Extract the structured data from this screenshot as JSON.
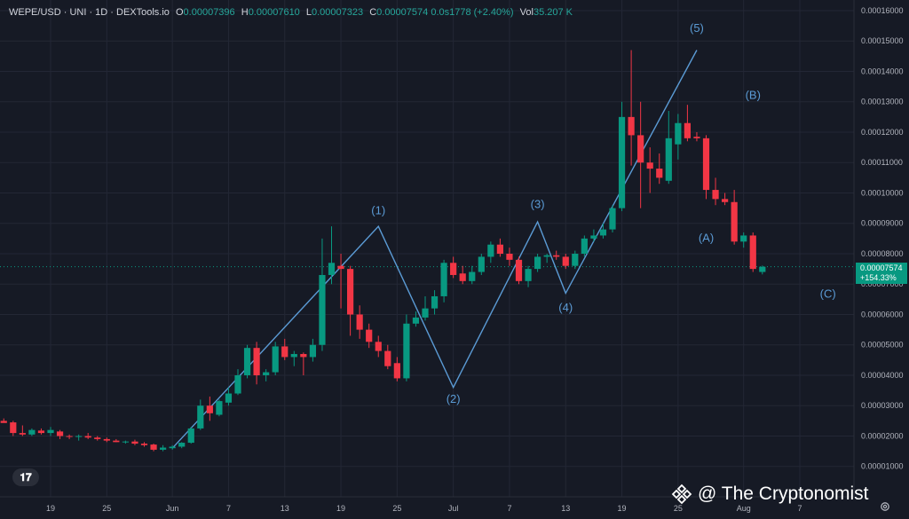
{
  "header": {
    "symbol": "WEPE/USD · UNI · 1D · DEXTools.io",
    "o_label": "O",
    "o_value": "0.00007396",
    "h_label": "H",
    "h_value": "0.00007610",
    "l_label": "L",
    "l_value": "0.00007323",
    "c_label": "C",
    "c_value": "0.00007574",
    "change": "0.0s1778 (+2.40%)",
    "vol_label": "Vol",
    "vol_value": "35.207 K"
  },
  "price_badge": {
    "price": "0.00007574",
    "pct": "+154.33%"
  },
  "watermark": {
    "text": "@ The Cryptonomist",
    "icon": "binance-diamond-icon"
  },
  "colors": {
    "up": "#089981",
    "down": "#f23645",
    "wave": "#5b9bd5",
    "bg": "#161a25",
    "grid": "#232735"
  },
  "chart_data": {
    "type": "candlestick",
    "title": "WEPE/USD · UNI · 1D · DEXTools.io",
    "y_ticks": [
      "0.00016000",
      "0.00015000",
      "0.00014000",
      "0.00013000",
      "0.00012000",
      "0.00011000",
      "0.00010000",
      "0.00009000",
      "0.00008000",
      "0.00007000",
      "0.00006000",
      "0.00005000",
      "0.00004000",
      "0.00003000",
      "0.00002000",
      "0.00001000"
    ],
    "y_tick_values": [
      0.00016,
      0.00015,
      0.00014,
      0.00013,
      0.00012,
      0.00011,
      0.0001,
      9e-05,
      8e-05,
      7e-05,
      6e-05,
      5e-05,
      4e-05,
      3e-05,
      2e-05,
      1e-05
    ],
    "x_ticks": [
      {
        "label": "19",
        "day": 0
      },
      {
        "label": "25",
        "day": 6
      },
      {
        "label": "Jun",
        "day": 13
      },
      {
        "label": "7",
        "day": 19
      },
      {
        "label": "13",
        "day": 25
      },
      {
        "label": "19",
        "day": 31
      },
      {
        "label": "25",
        "day": 37
      },
      {
        "label": "Jul",
        "day": 43
      },
      {
        "label": "7",
        "day": 49
      },
      {
        "label": "13",
        "day": 55
      },
      {
        "label": "19",
        "day": 61
      },
      {
        "label": "25",
        "day": 67
      },
      {
        "label": "Aug",
        "day": 74
      },
      {
        "label": "7",
        "day": 80
      }
    ],
    "ylim": [
      0.0,
      0.0001635
    ],
    "candles": [
      {
        "o": 2.6e-05,
        "h": 2.95e-05,
        "l": 2.45e-05,
        "c": 2.5e-05
      },
      {
        "o": 2.5e-05,
        "h": 2.58e-05,
        "l": 2.45e-05,
        "c": 2.43e-05
      },
      {
        "o": 2.45e-05,
        "h": 2.5e-05,
        "l": 2e-05,
        "c": 2.1e-05
      },
      {
        "o": 2.1e-05,
        "h": 2.35e-05,
        "l": 2e-05,
        "c": 2.05e-05
      },
      {
        "o": 2.05e-05,
        "h": 2.25e-05,
        "l": 2e-05,
        "c": 2.2e-05
      },
      {
        "o": 2.18e-05,
        "h": 2.25e-05,
        "l": 2.05e-05,
        "c": 2.1e-05
      },
      {
        "o": 2.1e-05,
        "h": 2.3e-05,
        "l": 2e-05,
        "c": 2.2e-05
      },
      {
        "o": 2.15e-05,
        "h": 2.2e-05,
        "l": 1.9e-05,
        "c": 2e-05
      },
      {
        "o": 2e-05,
        "h": 2.05e-05,
        "l": 1.9e-05,
        "c": 1.98e-05
      },
      {
        "o": 1.98e-05,
        "h": 2.05e-05,
        "l": 1.85e-05,
        "c": 2e-05
      },
      {
        "o": 2e-05,
        "h": 2.1e-05,
        "l": 1.9e-05,
        "c": 1.95e-05
      },
      {
        "o": 1.95e-05,
        "h": 2e-05,
        "l": 1.85e-05,
        "c": 1.9e-05
      },
      {
        "o": 1.9e-05,
        "h": 1.95e-05,
        "l": 1.8e-05,
        "c": 1.85e-05
      },
      {
        "o": 1.85e-05,
        "h": 1.9e-05,
        "l": 1.8e-05,
        "c": 1.8e-05
      },
      {
        "o": 1.8e-05,
        "h": 1.85e-05,
        "l": 1.75e-05,
        "c": 1.82e-05
      },
      {
        "o": 1.82e-05,
        "h": 1.88e-05,
        "l": 1.7e-05,
        "c": 1.75e-05
      },
      {
        "o": 1.75e-05,
        "h": 1.8e-05,
        "l": 1.65e-05,
        "c": 1.7e-05
      },
      {
        "o": 1.72e-05,
        "h": 1.75e-05,
        "l": 1.5e-05,
        "c": 1.55e-05
      },
      {
        "o": 1.55e-05,
        "h": 1.7e-05,
        "l": 1.5e-05,
        "c": 1.62e-05
      },
      {
        "o": 1.6e-05,
        "h": 1.7e-05,
        "l": 1.55e-05,
        "c": 1.65e-05
      },
      {
        "o": 1.65e-05,
        "h": 1.8e-05,
        "l": 1.6e-05,
        "c": 1.78e-05
      },
      {
        "o": 1.78e-05,
        "h": 2.3e-05,
        "l": 1.75e-05,
        "c": 2.25e-05
      },
      {
        "o": 2.25e-05,
        "h": 3.2e-05,
        "l": 2.2e-05,
        "c": 3e-05
      },
      {
        "o": 3e-05,
        "h": 3.3e-05,
        "l": 2.5e-05,
        "c": 2.75e-05
      },
      {
        "o": 2.7e-05,
        "h": 3.2e-05,
        "l": 2.65e-05,
        "c": 3.15e-05
      },
      {
        "o": 3.1e-05,
        "h": 3.6e-05,
        "l": 3e-05,
        "c": 3.4e-05
      },
      {
        "o": 3.4e-05,
        "h": 4.2e-05,
        "l": 3.35e-05,
        "c": 4e-05
      },
      {
        "o": 4e-05,
        "h": 5e-05,
        "l": 3.9e-05,
        "c": 4.9e-05
      },
      {
        "o": 4.9e-05,
        "h": 5.1e-05,
        "l": 3.7e-05,
        "c": 4e-05
      },
      {
        "o": 4e-05,
        "h": 4.2e-05,
        "l": 3.8e-05,
        "c": 4.1e-05
      },
      {
        "o": 4.1e-05,
        "h": 5.1e-05,
        "l": 4e-05,
        "c": 4.95e-05
      },
      {
        "o": 4.95e-05,
        "h": 5.2e-05,
        "l": 4.5e-05,
        "c": 4.6e-05
      },
      {
        "o": 4.6e-05,
        "h": 4.8e-05,
        "l": 4.3e-05,
        "c": 4.7e-05
      },
      {
        "o": 4.7e-05,
        "h": 4.75e-05,
        "l": 4e-05,
        "c": 4.6e-05
      },
      {
        "o": 4.6e-05,
        "h": 5.2e-05,
        "l": 4.45e-05,
        "c": 5e-05
      },
      {
        "o": 5e-05,
        "h": 8.5e-05,
        "l": 4.8e-05,
        "c": 7.3e-05
      },
      {
        "o": 7.3e-05,
        "h": 8.9e-05,
        "l": 7e-05,
        "c": 7.7e-05
      },
      {
        "o": 7.6e-05,
        "h": 8e-05,
        "l": 6.2e-05,
        "c": 7.5e-05
      },
      {
        "o": 7.5e-05,
        "h": 7.6e-05,
        "l": 5.3e-05,
        "c": 6e-05
      },
      {
        "o": 6e-05,
        "h": 6.3e-05,
        "l": 5.2e-05,
        "c": 5.5e-05
      },
      {
        "o": 5.5e-05,
        "h": 5.7e-05,
        "l": 4.9e-05,
        "c": 5.1e-05
      },
      {
        "o": 5.1e-05,
        "h": 5.3e-05,
        "l": 4.6e-05,
        "c": 4.8e-05
      },
      {
        "o": 4.8e-05,
        "h": 5e-05,
        "l": 4.2e-05,
        "c": 4.3e-05
      },
      {
        "o": 4.4e-05,
        "h": 4.6e-05,
        "l": 3.8e-05,
        "c": 3.9e-05
      },
      {
        "o": 3.9e-05,
        "h": 6e-05,
        "l": 3.8e-05,
        "c": 5.7e-05
      },
      {
        "o": 5.7e-05,
        "h": 6.1e-05,
        "l": 5.6e-05,
        "c": 5.9e-05
      },
      {
        "o": 5.9e-05,
        "h": 6.6e-05,
        "l": 5.8e-05,
        "c": 6.2e-05
      },
      {
        "o": 6.2e-05,
        "h": 6.8e-05,
        "l": 6e-05,
        "c": 6.6e-05
      },
      {
        "o": 6.6e-05,
        "h": 7.8e-05,
        "l": 6.4e-05,
        "c": 7.7e-05
      },
      {
        "o": 7.7e-05,
        "h": 7.9e-05,
        "l": 7.2e-05,
        "c": 7.3e-05
      },
      {
        "o": 7.35e-05,
        "h": 7.6e-05,
        "l": 7e-05,
        "c": 7.1e-05
      },
      {
        "o": 7.1e-05,
        "h": 7.6e-05,
        "l": 7e-05,
        "c": 7.4e-05
      },
      {
        "o": 7.4e-05,
        "h": 8e-05,
        "l": 7.3e-05,
        "c": 7.9e-05
      },
      {
        "o": 7.9e-05,
        "h": 8.4e-05,
        "l": 7.7e-05,
        "c": 8.3e-05
      },
      {
        "o": 8.3e-05,
        "h": 8.5e-05,
        "l": 7.9e-05,
        "c": 8e-05
      },
      {
        "o": 8e-05,
        "h": 8.2e-05,
        "l": 7.6e-05,
        "c": 7.8e-05
      },
      {
        "o": 7.8e-05,
        "h": 7.9e-05,
        "l": 7e-05,
        "c": 7.1e-05
      },
      {
        "o": 7.1e-05,
        "h": 7.6e-05,
        "l": 6.9e-05,
        "c": 7.5e-05
      },
      {
        "o": 7.5e-05,
        "h": 8e-05,
        "l": 7.4e-05,
        "c": 7.9e-05
      },
      {
        "o": 7.9e-05,
        "h": 8e-05,
        "l": 7.7e-05,
        "c": 7.95e-05
      },
      {
        "o": 7.95e-05,
        "h": 8.1e-05,
        "l": 7.8e-05,
        "c": 7.9e-05
      },
      {
        "o": 7.9e-05,
        "h": 8e-05,
        "l": 7.5e-05,
        "c": 7.6e-05
      },
      {
        "o": 7.6e-05,
        "h": 8.1e-05,
        "l": 7.5e-05,
        "c": 8e-05
      },
      {
        "o": 8e-05,
        "h": 8.6e-05,
        "l": 7.9e-05,
        "c": 8.5e-05
      },
      {
        "o": 8.5e-05,
        "h": 8.8e-05,
        "l": 8.4e-05,
        "c": 8.6e-05
      },
      {
        "o": 8.6e-05,
        "h": 9e-05,
        "l": 8.5e-05,
        "c": 8.8e-05
      },
      {
        "o": 8.8e-05,
        "h": 9.6e-05,
        "l": 8.7e-05,
        "c": 9.5e-05
      },
      {
        "o": 9.5e-05,
        "h": 0.00013,
        "l": 9.4e-05,
        "c": 0.000125
      },
      {
        "o": 0.000125,
        "h": 0.000147,
        "l": 0.000109,
        "c": 0.000119
      },
      {
        "o": 0.000119,
        "h": 0.00013,
        "l": 9.5e-05,
        "c": 0.00011
      },
      {
        "o": 0.00011,
        "h": 0.000115,
        "l": 0.0001,
        "c": 0.000108
      },
      {
        "o": 0.000108,
        "h": 0.000113,
        "l": 0.000103,
        "c": 0.000105
      },
      {
        "o": 0.000104,
        "h": 0.000127,
        "l": 0.000103,
        "c": 0.000118
      },
      {
        "o": 0.000116,
        "h": 0.000126,
        "l": 0.000111,
        "c": 0.000123
      },
      {
        "o": 0.000123,
        "h": 0.000129,
        "l": 0.000117,
        "c": 0.000118
      },
      {
        "o": 0.0001185,
        "h": 0.00012,
        "l": 0.000117,
        "c": 0.000118
      },
      {
        "o": 0.000118,
        "h": 0.000119,
        "l": 9.8e-05,
        "c": 0.000101
      },
      {
        "o": 0.000101,
        "h": 0.000105,
        "l": 9.6e-05,
        "c": 9.8e-05
      },
      {
        "o": 9.8e-05,
        "h": 0.0001,
        "l": 9.6e-05,
        "c": 9.7e-05
      },
      {
        "o": 9.7e-05,
        "h": 0.000101,
        "l": 8.3e-05,
        "c": 8.4e-05
      },
      {
        "o": 8.4e-05,
        "h": 8.7e-05,
        "l": 8.2e-05,
        "c": 8.6e-05
      },
      {
        "o": 8.6e-05,
        "h": 8.7e-05,
        "l": 7.4e-05,
        "c": 7.5e-05
      },
      {
        "o": 7.4e-05,
        "h": 7.61e-05,
        "l": 7.32e-05,
        "c": 7.57e-05
      }
    ],
    "current_price": 7.574e-05,
    "wave_path": [
      {
        "day": 13,
        "price": 1.6e-05
      },
      {
        "day": 35,
        "price": 8.9e-05
      },
      {
        "day": 43,
        "price": 3.6e-05
      },
      {
        "day": 52,
        "price": 9.05e-05
      },
      {
        "day": 55,
        "price": 6.7e-05
      },
      {
        "day": 69,
        "price": 0.000147
      }
    ],
    "wave_labels": [
      {
        "label": "(1)",
        "day": 35,
        "price": 9.3e-05
      },
      {
        "label": "(2)",
        "day": 43,
        "price": 3.1e-05
      },
      {
        "label": "(3)",
        "day": 52,
        "price": 9.5e-05
      },
      {
        "label": "(4)",
        "day": 55,
        "price": 6.1e-05
      },
      {
        "label": "(5)",
        "day": 69,
        "price": 0.000153
      },
      {
        "label": "(A)",
        "day": 70,
        "price": 8.4e-05
      },
      {
        "label": "(B)",
        "day": 75,
        "price": 0.000131
      },
      {
        "label": "(C)",
        "day": 83,
        "price": 6.55e-05
      }
    ]
  }
}
